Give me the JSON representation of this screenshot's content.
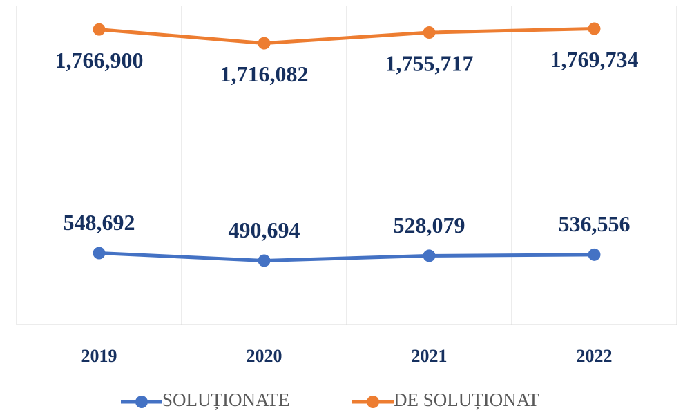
{
  "chart_data": {
    "type": "line",
    "categories": [
      "2019",
      "2020",
      "2021",
      "2022"
    ],
    "series": [
      {
        "name": "SOLUȚIONATE",
        "color": "#4472c4",
        "values": [
          548692,
          490694,
          528079,
          536556
        ],
        "value_labels": [
          "548,692",
          "490,694",
          "528,079",
          "536,556"
        ]
      },
      {
        "name": "DE SOLUȚIONAT",
        "color": "#ed7d31",
        "axis": "y2",
        "values": [
          1766900,
          1716082,
          1755717,
          1769734
        ],
        "value_labels": [
          "1,766,900",
          "1,716,082",
          "1,755,717",
          "1,769,734"
        ]
      }
    ],
    "ylim": [
      0,
      2450000
    ],
    "y2lim": [
      680000,
      1855000
    ],
    "grid": true,
    "legend": "bottom"
  }
}
